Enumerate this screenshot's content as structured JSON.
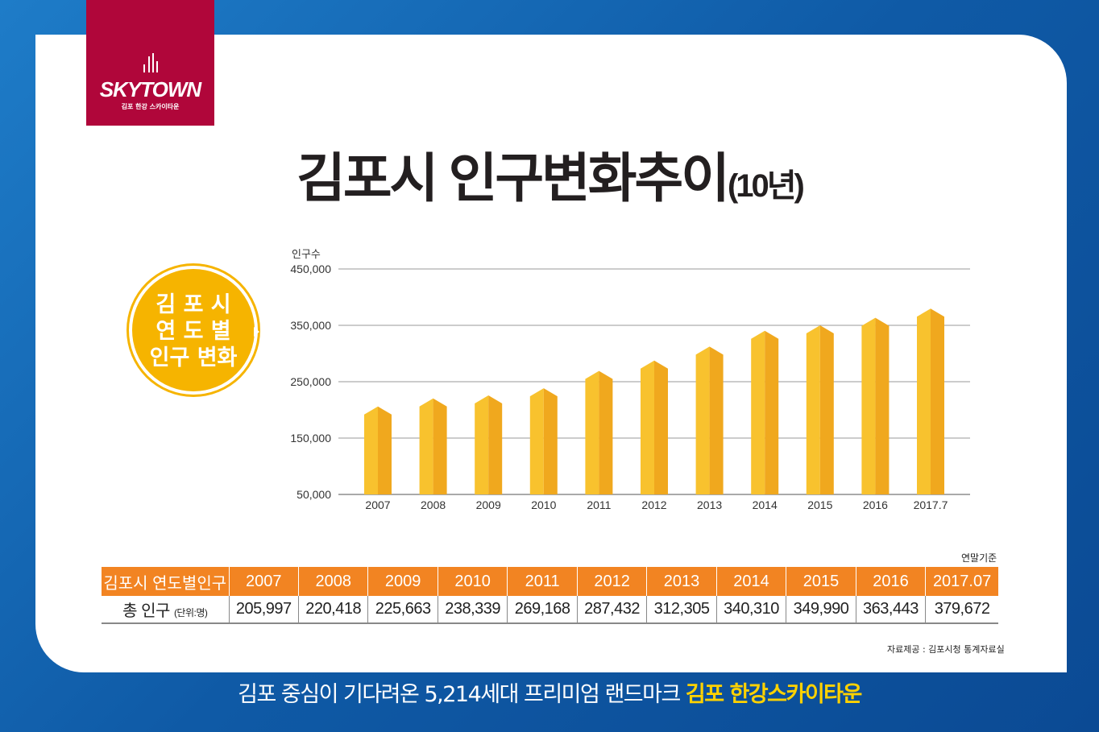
{
  "logo": {
    "brand": "SKYTOWN",
    "sub": "김포 한강 스카이타운"
  },
  "title": {
    "main": "김포시 인구변화추이",
    "suffix": "(10년)"
  },
  "badge": {
    "line1": "김 포 시",
    "line2": "연 도 별",
    "line3": "인구 변화"
  },
  "chart_data": {
    "type": "bar",
    "title": "김포시 인구변화추이(10년)",
    "ylabel": "인구수",
    "xlabel": "",
    "categories": [
      "2007",
      "2008",
      "2009",
      "2010",
      "2011",
      "2012",
      "2013",
      "2014",
      "2015",
      "2016",
      "2017.7"
    ],
    "values": [
      205997,
      220418,
      225663,
      238339,
      269168,
      287432,
      312305,
      340310,
      349990,
      363443,
      379672
    ],
    "ylim": [
      50000,
      450000
    ],
    "yticks": [
      "50,000",
      "150,000",
      "250,000",
      "350,000",
      "450,000"
    ],
    "grid": true,
    "bar_color": "#f6b52a"
  },
  "table": {
    "basis_note": "연말기준",
    "header_label": "김포시 연도별인구",
    "years": [
      "2007",
      "2008",
      "2009",
      "2010",
      "2011",
      "2012",
      "2013",
      "2014",
      "2015",
      "2016",
      "2017.07"
    ],
    "row_label": "총 인구",
    "row_unit": "(단위:명)",
    "values": [
      "205,997",
      "220,418",
      "225,663",
      "238,339",
      "269,168",
      "287,432",
      "312,305",
      "340,310",
      "349,990",
      "363,443",
      "379,672"
    ]
  },
  "source": "자료제공 : 김포시청 통계자료실",
  "footer": {
    "text": "김포 중심이 기다려온 5,214세대 프리미엄 랜드마크 ",
    "highlight": "김포 한강스카이타운"
  }
}
